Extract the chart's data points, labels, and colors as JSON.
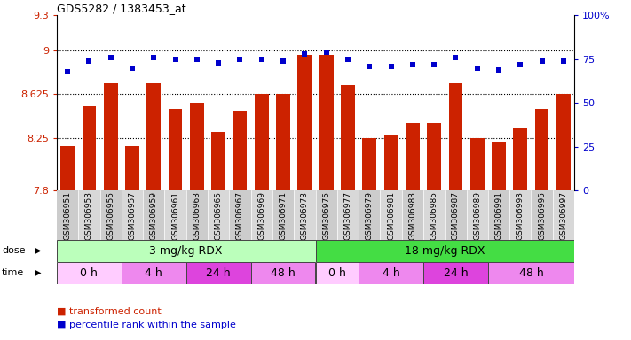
{
  "title": "GDS5282 / 1383453_at",
  "samples": [
    "GSM306951",
    "GSM306953",
    "GSM306955",
    "GSM306957",
    "GSM306959",
    "GSM306961",
    "GSM306963",
    "GSM306965",
    "GSM306967",
    "GSM306969",
    "GSM306971",
    "GSM306973",
    "GSM306975",
    "GSM306977",
    "GSM306979",
    "GSM306981",
    "GSM306983",
    "GSM306985",
    "GSM306987",
    "GSM306989",
    "GSM306991",
    "GSM306993",
    "GSM306995",
    "GSM306997"
  ],
  "bar_values": [
    8.18,
    8.52,
    8.72,
    8.18,
    8.72,
    8.5,
    8.55,
    8.3,
    8.48,
    8.63,
    8.63,
    8.96,
    8.96,
    8.7,
    8.25,
    8.28,
    8.38,
    8.38,
    8.72,
    8.25,
    8.22,
    8.33,
    8.5,
    8.625
  ],
  "dot_values": [
    68,
    74,
    76,
    70,
    76,
    75,
    75,
    73,
    75,
    75,
    74,
    78,
    79,
    75,
    71,
    71,
    72,
    72,
    76,
    70,
    69,
    72,
    74,
    74
  ],
  "ylim_left": [
    7.8,
    9.3
  ],
  "ylim_right": [
    0,
    100
  ],
  "yticks_left": [
    7.8,
    8.25,
    8.625,
    9.0,
    9.3
  ],
  "ytick_labels_left": [
    "7.8",
    "8.25",
    "8.625",
    "9",
    "9.3"
  ],
  "yticks_right": [
    0,
    25,
    50,
    75,
    100
  ],
  "ytick_labels_right": [
    "0",
    "25",
    "50",
    "75",
    "100%"
  ],
  "bar_color": "#cc2200",
  "dot_color": "#0000cc",
  "dose_groups": [
    {
      "label": "3 mg/kg RDX",
      "start": 0,
      "end": 11,
      "color": "#bbffbb"
    },
    {
      "label": "18 mg/kg RDX",
      "start": 12,
      "end": 23,
      "color": "#44dd44"
    }
  ],
  "time_groups": [
    {
      "label": "0 h",
      "start": 0,
      "end": 2,
      "color": "#ffccff"
    },
    {
      "label": "4 h",
      "start": 3,
      "end": 5,
      "color": "#ee88ee"
    },
    {
      "label": "24 h",
      "start": 6,
      "end": 8,
      "color": "#dd44dd"
    },
    {
      "label": "48 h",
      "start": 9,
      "end": 11,
      "color": "#ee88ee"
    },
    {
      "label": "0 h",
      "start": 12,
      "end": 13,
      "color": "#ffccff"
    },
    {
      "label": "4 h",
      "start": 14,
      "end": 16,
      "color": "#ee88ee"
    },
    {
      "label": "24 h",
      "start": 17,
      "end": 19,
      "color": "#dd44dd"
    },
    {
      "label": "48 h",
      "start": 20,
      "end": 23,
      "color": "#ee88ee"
    }
  ],
  "legend_items": [
    {
      "label": "transformed count",
      "color": "#cc2200"
    },
    {
      "label": "percentile rank within the sample",
      "color": "#0000cc"
    }
  ]
}
